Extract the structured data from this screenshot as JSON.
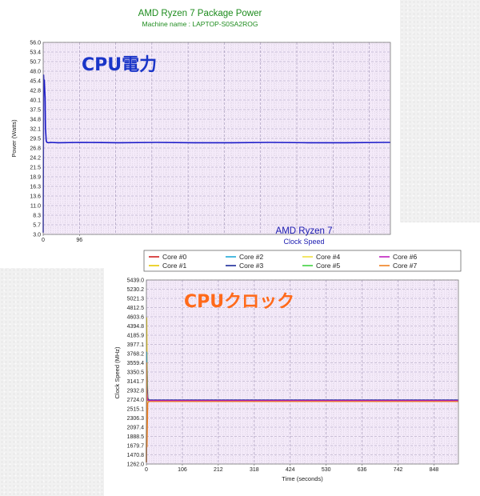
{
  "chart_data": [
    {
      "type": "line",
      "title": "AMD Ryzen 7 Package Power",
      "subtitle": "Machine name : LAPTOP-S0SA2ROG",
      "overlay_label": "CPU電力",
      "xlabel": "",
      "ylabel": "Power (Watts)",
      "ylim": [
        3.0,
        56.0
      ],
      "xlim": [
        0,
        920
      ],
      "y_ticks": [
        "56.0",
        "53.4",
        "50.7",
        "48.0",
        "45.4",
        "42.8",
        "40.1",
        "37.5",
        "34.8",
        "32.1",
        "29.5",
        "26.8",
        "24.2",
        "21.5",
        "18.9",
        "16.3",
        "13.6",
        "11.0",
        "8.3",
        "5.7",
        "3.0"
      ],
      "x_ticks": [
        "0",
        "96"
      ],
      "grid": true,
      "series": [
        {
          "color": "#1a1ac8",
          "x": [
            0,
            1,
            2,
            3,
            4,
            5,
            6,
            8,
            10,
            14,
            20,
            40,
            100,
            200,
            300,
            400,
            500,
            600,
            700,
            800,
            900,
            920
          ],
          "y": [
            3.5,
            47.0,
            44.5,
            45.6,
            43.0,
            40.5,
            32.5,
            28.8,
            28.4,
            28.3,
            28.4,
            28.3,
            28.4,
            28.3,
            28.4,
            28.3,
            28.3,
            28.4,
            28.3,
            28.3,
            28.4,
            28.4
          ]
        }
      ]
    },
    {
      "type": "line",
      "title": "AMD Ryzen 7",
      "subtitle": "Clock Speed",
      "overlay_label": "CPUクロック",
      "xlabel": "Time (seconds)",
      "ylabel": "Clock Speed (MHz)",
      "ylim": [
        1262.0,
        5439.0
      ],
      "xlim": [
        0,
        920
      ],
      "y_ticks": [
        "5439.0",
        "5230.2",
        "5021.3",
        "4812.5",
        "4603.6",
        "4394.8",
        "4185.9",
        "3977.1",
        "3768.2",
        "3559.4",
        "3350.5",
        "3141.7",
        "2932.8",
        "2724.0",
        "2515.1",
        "2306.3",
        "2097.4",
        "1888.5",
        "1679.7",
        "1470.8",
        "1262.0"
      ],
      "x_ticks": [
        "0",
        "106",
        "212",
        "318",
        "424",
        "530",
        "636",
        "742",
        "848"
      ],
      "grid": true,
      "series": [
        {
          "name": "Core #0",
          "color": "#d02020",
          "x": [
            0,
            1,
            2,
            4,
            8,
            920
          ],
          "y": [
            1300,
            3500,
            3000,
            2720,
            2690,
            2690
          ]
        },
        {
          "name": "Core #1",
          "color": "#e8c800",
          "x": [
            0,
            1,
            2,
            4,
            8,
            920
          ],
          "y": [
            1300,
            4580,
            3600,
            2780,
            2700,
            2700
          ]
        },
        {
          "name": "Core #2",
          "color": "#20a8d8",
          "x": [
            0,
            1,
            2,
            4,
            8,
            920
          ],
          "y": [
            1300,
            3800,
            3300,
            2740,
            2710,
            2710
          ]
        },
        {
          "name": "Core #3",
          "color": "#1a2a9a",
          "x": [
            0,
            1,
            2,
            4,
            8,
            920
          ],
          "y": [
            1300,
            3400,
            3100,
            2750,
            2715,
            2715
          ]
        },
        {
          "name": "Core #4",
          "color": "#f0e040",
          "x": [
            0,
            1,
            2,
            4,
            8,
            920
          ],
          "y": [
            1300,
            3200,
            2900,
            2700,
            2680,
            2680
          ]
        },
        {
          "name": "Core #5",
          "color": "#40d040",
          "x": [
            0,
            1,
            2,
            4,
            8,
            920
          ],
          "y": [
            1300,
            3100,
            2800,
            2700,
            2695,
            2695
          ]
        },
        {
          "name": "Core #6",
          "color": "#c020c0",
          "x": [
            0,
            1,
            2,
            4,
            8,
            920
          ],
          "y": [
            1300,
            3000,
            2850,
            2710,
            2700,
            2700
          ]
        },
        {
          "name": "Core #7",
          "color": "#f08020",
          "x": [
            0,
            1,
            2,
            4,
            8,
            920
          ],
          "y": [
            1300,
            3560,
            1650,
            2650,
            2680,
            2680
          ]
        }
      ]
    }
  ]
}
